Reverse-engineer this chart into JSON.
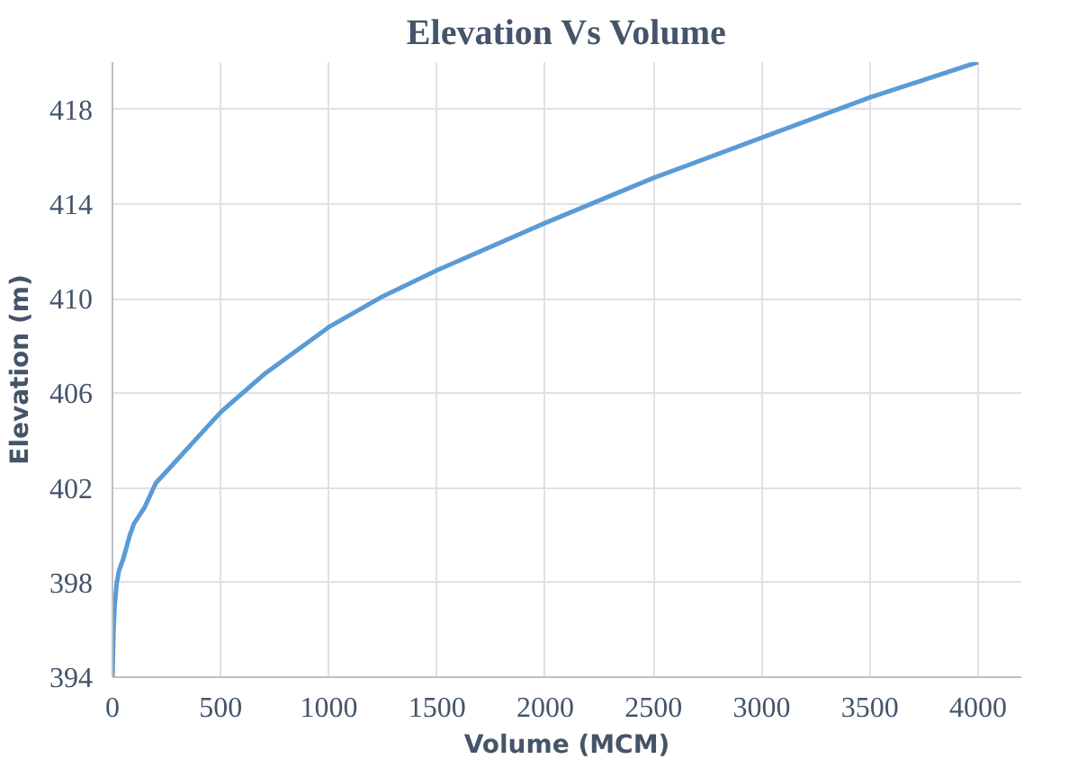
{
  "chart_data": {
    "type": "line",
    "title": "Elevation Vs Volume",
    "xlabel": "Volume (MCM)",
    "ylabel": "Elevation (m)",
    "x": [
      0,
      5,
      10,
      20,
      30,
      50,
      80,
      100,
      150,
      200,
      300,
      400,
      500,
      700,
      1000,
      1250,
      1500,
      2000,
      2500,
      3000,
      3500,
      4000
    ],
    "series": [
      {
        "color": "#5b9bd5",
        "values": [
          394,
          396,
          397,
          398,
          398.5,
          399,
          400,
          400.5,
          401.2,
          402.2,
          403.2,
          404.2,
          405.2,
          406.8,
          408.8,
          410.1,
          411.2,
          413.2,
          415.1,
          416.8,
          418.5,
          420
        ]
      }
    ],
    "xlim": [
      0,
      4200
    ],
    "ylim": [
      394,
      420
    ],
    "xticks": [
      0,
      500,
      1000,
      1500,
      2000,
      2500,
      3000,
      3500,
      4000
    ],
    "yticks": [
      394,
      398,
      402,
      406,
      410,
      414,
      418
    ],
    "grid": true,
    "marker": "none",
    "line_style": "solid"
  }
}
